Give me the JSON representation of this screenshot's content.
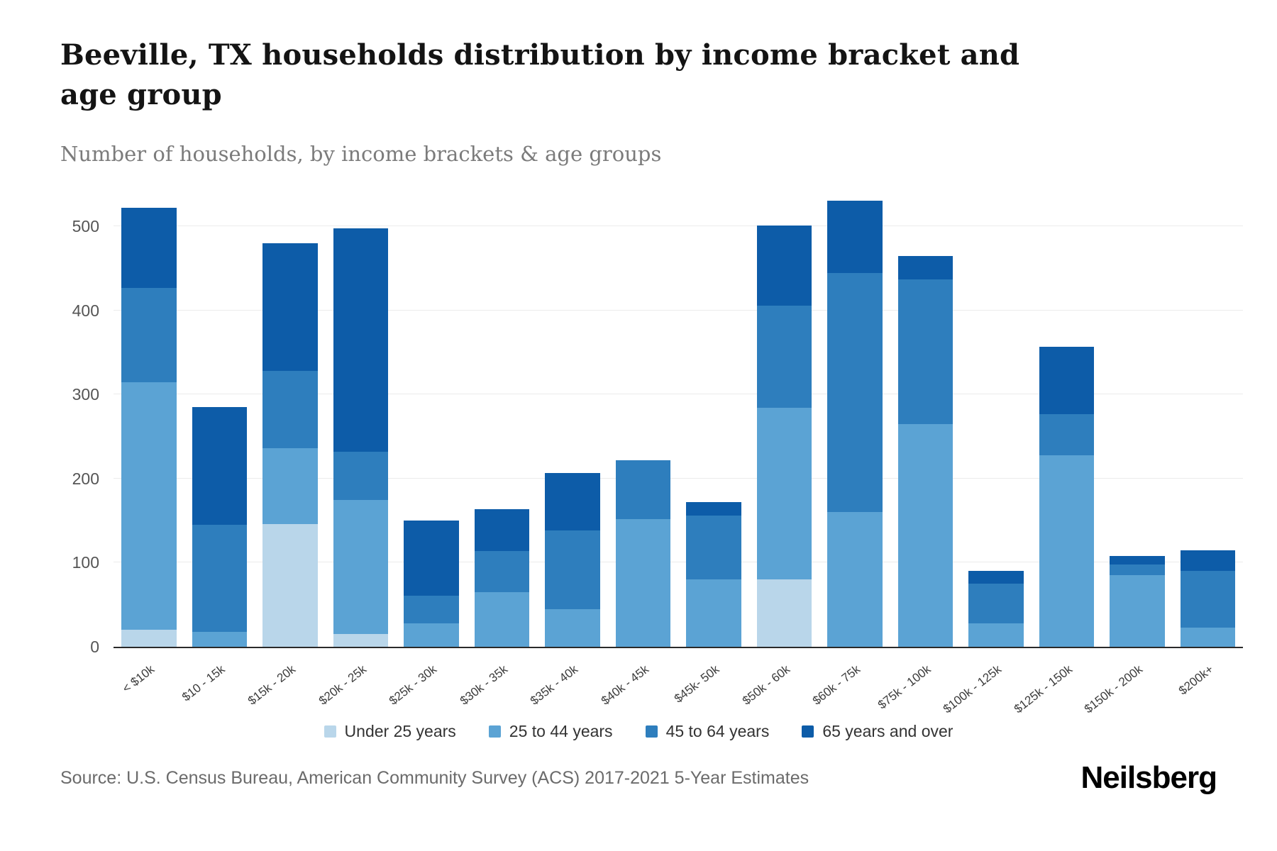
{
  "title": "Beeville, TX households distribution by income bracket and age group",
  "subtitle": "Number of households, by income brackets & age groups",
  "source": "Source: U.S. Census Bureau, American Community Survey (ACS) 2017-2021 5-Year Estimates",
  "brand": "Neilsberg",
  "chart_data": {
    "type": "bar",
    "stacked": true,
    "title": "Beeville, TX households distribution by income bracket and age group",
    "xlabel": "",
    "ylabel": "",
    "ylim": [
      0,
      540
    ],
    "yticks": [
      0,
      100,
      200,
      300,
      400,
      500
    ],
    "grid": true,
    "legend_position": "bottom",
    "categories": [
      "< $10k",
      "$10 - 15k",
      "$15k - 20k",
      "$20k - 25k",
      "$25k - 30k",
      "$30k - 35k",
      "$35k - 40k",
      "$40k - 45k",
      "$45k- 50k",
      "$50k - 60k",
      "$60k - 75k",
      "$75k - 100k",
      "$100k - 125k",
      "$125k - 150k",
      "$150k - 200k",
      "$200k+"
    ],
    "series": [
      {
        "name": "Under 25 years",
        "color": "#b9d6ea",
        "values": [
          20,
          0,
          146,
          15,
          0,
          0,
          0,
          0,
          0,
          80,
          0,
          0,
          0,
          0,
          0,
          0
        ]
      },
      {
        "name": "25 to 44 years",
        "color": "#5ba3d4",
        "values": [
          295,
          18,
          90,
          160,
          28,
          65,
          45,
          152,
          80,
          204,
          160,
          265,
          28,
          228,
          85,
          23
        ]
      },
      {
        "name": "45 to 64 years",
        "color": "#2e7ebd",
        "values": [
          112,
          127,
          92,
          57,
          33,
          49,
          93,
          70,
          76,
          122,
          285,
          172,
          47,
          49,
          13,
          67
        ]
      },
      {
        "name": "65 years and over",
        "color": "#0d5ca8",
        "values": [
          95,
          140,
          152,
          266,
          89,
          50,
          69,
          0,
          16,
          95,
          86,
          28,
          15,
          80,
          10,
          25
        ]
      }
    ]
  }
}
